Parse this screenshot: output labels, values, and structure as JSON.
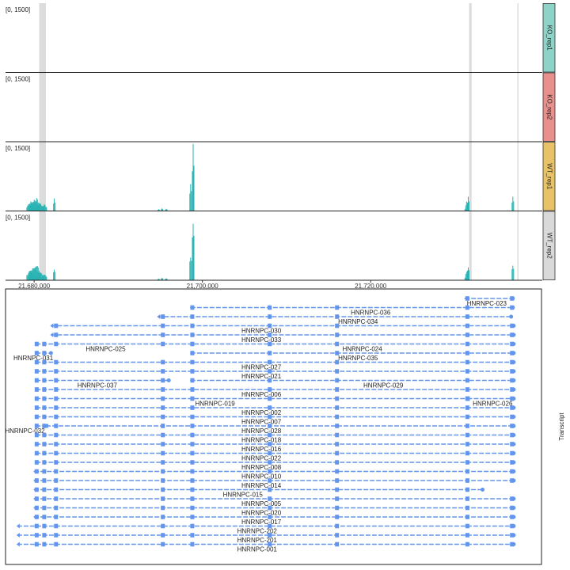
{
  "chart_data": {
    "type": "coverage-track-plot",
    "genomic_axis": {
      "xlim": [
        21676600,
        21740400
      ],
      "ticks": [
        21680000,
        21700000,
        21720000
      ],
      "tick_labels": [
        "21,680,000",
        "21,700,000",
        "21,720,000"
      ]
    },
    "highlight_regions": [
      [
        21680600,
        21681400
      ],
      [
        21731700,
        21732000
      ]
    ],
    "reference_line": 21737500,
    "colors": {
      "coverage": "#2ab3b3",
      "highlight": "#dcdcdc",
      "transcript": "#6495ed",
      "border": "#222222",
      "divider": "#cccccc"
    },
    "tracks": [
      {
        "name": "KO_rep1",
        "range_label": "[0, 1500]",
        "ymax": 1500,
        "strip_color": "#8ed3c7",
        "peaks": []
      },
      {
        "name": "KO_rep2",
        "range_label": "[0, 1500]",
        "ymax": 1500,
        "strip_color": "#e8908c",
        "peaks": []
      },
      {
        "name": "WT_rep1",
        "range_label": "[0, 1500]",
        "ymax": 1500,
        "strip_color": "#e8c267",
        "peaks": [
          [
            21679600,
            10,
            220
          ],
          [
            21680000,
            14,
            260
          ],
          [
            21680300,
            9,
            300
          ],
          [
            21680700,
            10,
            180
          ],
          [
            21681200,
            7,
            160
          ],
          [
            21682400,
            2,
            290
          ],
          [
            21694800,
            2,
            40
          ],
          [
            21695200,
            3,
            60
          ],
          [
            21695700,
            3,
            50
          ],
          [
            21698600,
            3,
            620
          ],
          [
            21698900,
            2,
            1550
          ],
          [
            21731300,
            2,
            70
          ],
          [
            21731400,
            2,
            220
          ],
          [
            21731600,
            2,
            330
          ],
          [
            21736900,
            2,
            330
          ]
        ]
      },
      {
        "name": "WT_rep2",
        "range_label": "[0, 1500]",
        "ymax": 1500,
        "strip_color": "#d9d9d9",
        "peaks": [
          [
            21679600,
            10,
            260
          ],
          [
            21680000,
            14,
            320
          ],
          [
            21680300,
            9,
            380
          ],
          [
            21680700,
            10,
            200
          ],
          [
            21681200,
            7,
            150
          ],
          [
            21682400,
            2,
            290
          ],
          [
            21694800,
            2,
            40
          ],
          [
            21695200,
            3,
            60
          ],
          [
            21695700,
            3,
            50
          ],
          [
            21698600,
            3,
            620
          ],
          [
            21698900,
            2,
            1550
          ],
          [
            21731300,
            2,
            90
          ],
          [
            21731400,
            2,
            230
          ],
          [
            21731600,
            2,
            350
          ],
          [
            21736900,
            2,
            400
          ]
        ]
      }
    ],
    "transcript_panel_label": "Transcript",
    "transcripts": [
      {
        "name": "HNRNPC-023",
        "start": 21731200,
        "end": 21736900,
        "label_x": 21733800
      },
      {
        "name": "HNRNPC-036",
        "start": 21698600,
        "end": 21736900,
        "label_x": 21720000
      },
      {
        "name": "HNRNPC-034",
        "start": 21694700,
        "end": 21736700,
        "label_x": 21718500
      },
      {
        "name": "HNRNPC-030",
        "start": 21682000,
        "end": 21737000,
        "label_x": 21707000
      },
      {
        "name": "HNRNPC-033",
        "start": 21682000,
        "end": 21737000,
        "label_x": 21707000
      },
      {
        "name": "HNRNPC-025",
        "start": 21680200,
        "end": 21737000,
        "label_x": 21688500,
        "extra_label": "HNRNPC-024",
        "extra_label_x": 21719000
      },
      {
        "name": "HNRNPC-031",
        "start": 21680200,
        "end": 21682000,
        "label_x": 21679900,
        "extra_label": "HNRNPC-035",
        "extra_label_x": 21718500,
        "extra_start": 21698600,
        "extra_end": 21737000
      },
      {
        "name": "HNRNPC-027",
        "start": 21680200,
        "end": 21737000,
        "label_x": 21707000
      },
      {
        "name": "HNRNPC-021",
        "start": 21680200,
        "end": 21737000,
        "label_x": 21707000
      },
      {
        "name": "HNRNPC-037",
        "start": 21680200,
        "end": 21696000,
        "label_x": 21687500,
        "extra_label": "HNRNPC-029",
        "extra_label_x": 21721500,
        "extra_start": 21698600,
        "extra_end": 21737000
      },
      {
        "name": "HNRNPC-006",
        "start": 21680200,
        "end": 21737000,
        "label_x": 21707000
      },
      {
        "name": "HNRNPC-019",
        "start": 21680200,
        "end": 21731500,
        "label_x": 21701500,
        "extra_label": "HNRNPC-026",
        "extra_label_x": 21734500,
        "extra_start": 21731500,
        "extra_end": 21737000
      },
      {
        "name": "HNRNPC-002",
        "start": 21680200,
        "end": 21737000,
        "label_x": 21707000
      },
      {
        "name": "HNRNPC-007",
        "start": 21680200,
        "end": 21737000,
        "label_x": 21707000
      },
      {
        "name": "HNRNPC-032",
        "start": 21680200,
        "end": 21681400,
        "label_x": 21678900,
        "extra_label": "HNRNPC-028",
        "extra_label_x": 21707000,
        "extra_start": 21681400,
        "extra_end": 21737000
      },
      {
        "name": "HNRNPC-018",
        "start": 21680200,
        "end": 21737000,
        "label_x": 21707000
      },
      {
        "name": "HNRNPC-016",
        "start": 21680200,
        "end": 21737000,
        "label_x": 21707000
      },
      {
        "name": "HNRNPC-022",
        "start": 21680200,
        "end": 21737000,
        "label_x": 21707000
      },
      {
        "name": "HNRNPC-008",
        "start": 21680200,
        "end": 21737000,
        "label_x": 21707000
      },
      {
        "name": "HNRNPC-010",
        "start": 21680000,
        "end": 21737000,
        "label_x": 21707000
      },
      {
        "name": "HNRNPC-014",
        "start": 21680000,
        "end": 21737000,
        "label_x": 21707000
      },
      {
        "name": "HNRNPC-015",
        "start": 21680000,
        "end": 21733300,
        "label_x": 21704800
      },
      {
        "name": "HNRNPC-005",
        "start": 21680000,
        "end": 21737000,
        "label_x": 21707000
      },
      {
        "name": "HNRNPC-020",
        "start": 21680000,
        "end": 21737000,
        "label_x": 21707000
      },
      {
        "name": "HNRNPC-017",
        "start": 21680000,
        "end": 21737000,
        "label_x": 21707000
      },
      {
        "name": "HNRNPC-202",
        "start": 21678000,
        "end": 21737000,
        "label_x": 21706500
      },
      {
        "name": "HNRNPC-201",
        "start": 21678000,
        "end": 21737000,
        "label_x": 21706500
      },
      {
        "name": "HNRNPC-001",
        "start": 21678000,
        "end": 21737000,
        "label_x": 21706500
      }
    ]
  }
}
